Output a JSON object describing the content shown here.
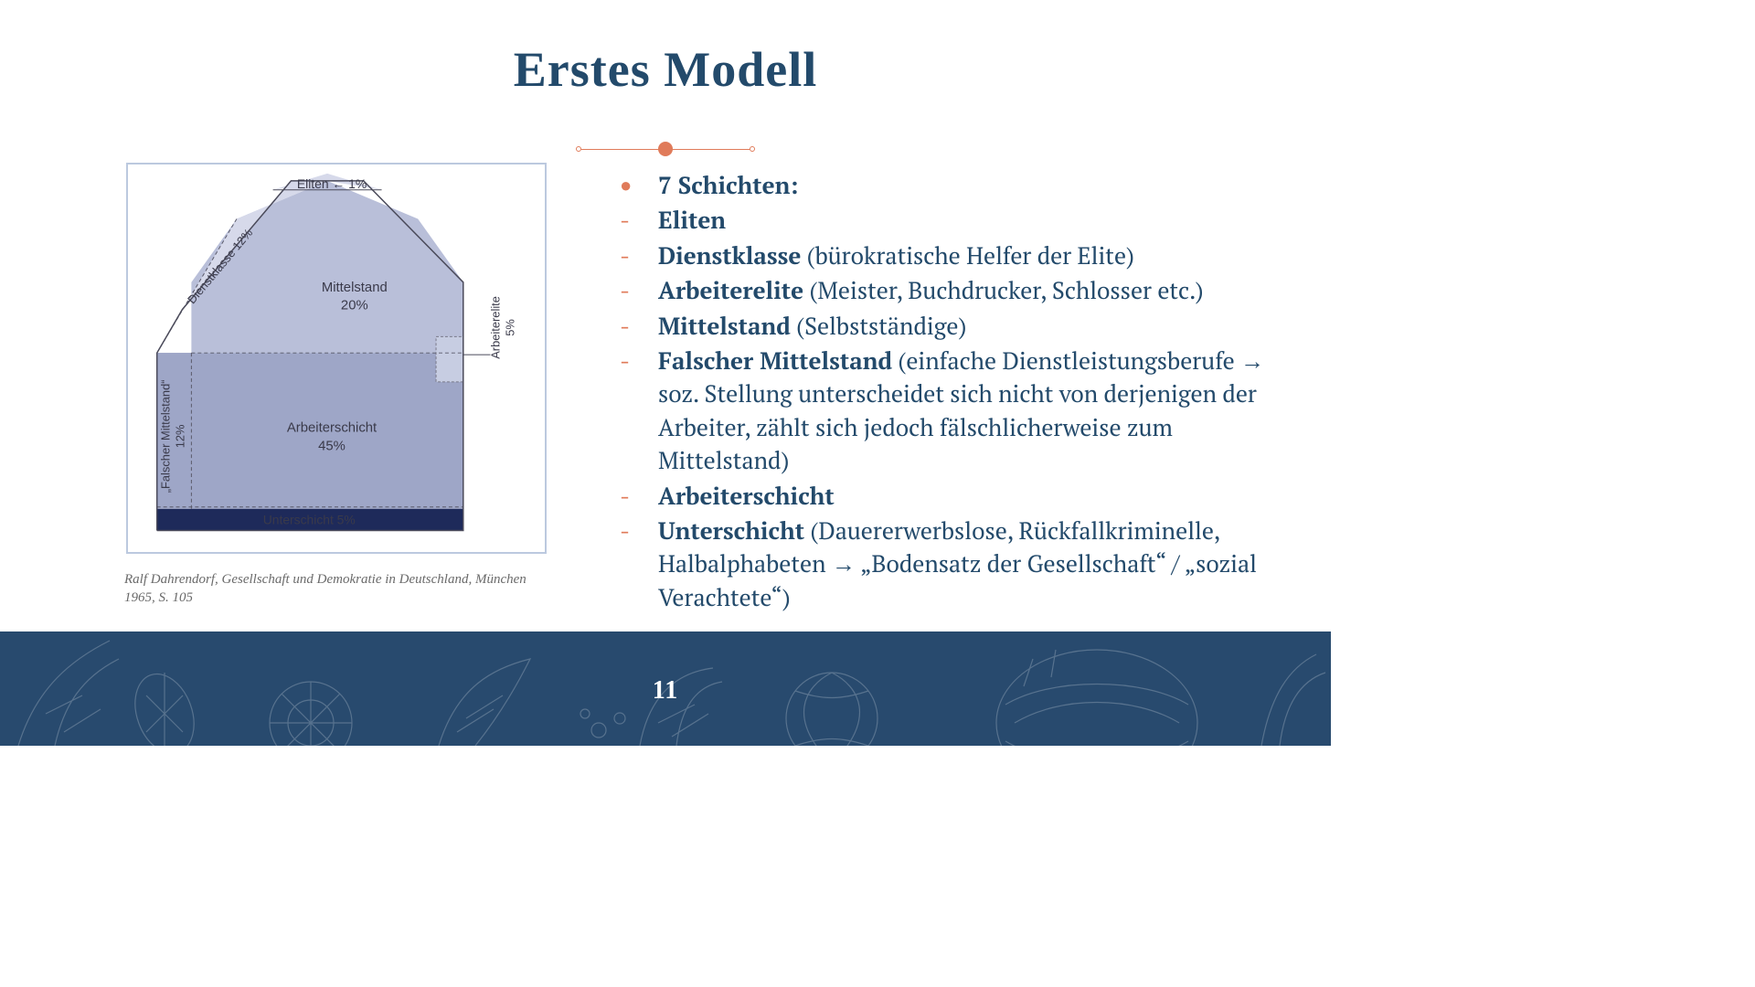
{
  "title": "Erstes Modell",
  "page_number": "11",
  "caption": "Ralf Dahrendorf, Gesellschaft und Demokratie in Deutschland, München 1965, S. 105",
  "bullets": [
    {
      "marker": "dot",
      "bold": "7 Schichten:",
      "rest": ""
    },
    {
      "marker": "dash",
      "bold": "Eliten",
      "rest": ""
    },
    {
      "marker": "dash",
      "bold": "Dienstklasse",
      "rest": " (bürokratische Helfer der Elite)"
    },
    {
      "marker": "dash",
      "bold": "Arbeiterelite",
      "rest": " (Meister, Buchdrucker, Schlosser etc.)"
    },
    {
      "marker": "dash",
      "bold": "Mittelstand",
      "rest": " (Selbstständige)"
    },
    {
      "marker": "dash",
      "bold": "Falscher Mittelstand",
      "rest": " (einfache Dienstleistungsberufe → soz. Stellung unterscheidet sich nicht von derjenigen der Arbeiter, zählt sich jedoch fälschlicherweise zum Mittelstand)"
    },
    {
      "marker": "dash",
      "bold": "Arbeiterschicht",
      "rest": ""
    },
    {
      "marker": "dash",
      "bold": "Unterschicht",
      "rest": " (Dauererwerbslose, Rückfallkriminelle, Halbalphabeten → „Bodensatz der Gesellschaft“ / „sozial Verachtete“)"
    }
  ],
  "colors": {
    "title": "#234a6b",
    "accent": "#e07b5a",
    "footer_bg": "#284a6e",
    "chart_border": "#bcc9df",
    "chart_light": "#d6d9ea",
    "chart_mid": "#b9bfd9",
    "chart_dark": "#9ea6c7",
    "chart_under": "#1e2a5a",
    "chart_side": "#c7cde2"
  },
  "chart": {
    "type": "infographic",
    "title_fontsize": 14,
    "strata": [
      {
        "name": "Eliten",
        "percent": "1%"
      },
      {
        "name": "Dienstklasse",
        "percent": "12%"
      },
      {
        "name": "Mittelstand",
        "percent": "20%"
      },
      {
        "name": "Arbeiterelite",
        "percent": "5%"
      },
      {
        "name": "„Falscher Mittelstand“",
        "percent": "12%"
      },
      {
        "name": "Arbeiterschicht",
        "percent": "45%"
      },
      {
        "name": "Unterschicht",
        "percent": "5%"
      }
    ],
    "labels": {
      "eliten": "Eliten ← 1%",
      "dienst": "Dienstklasse 12%",
      "mittel_name": "Mittelstand",
      "mittel_pct": "20%",
      "arbelite_name": "Arbeiterelite",
      "arbelite_pct": "5%",
      "falsch_name": "„Falscher Mittelstand“",
      "falsch_pct": "12%",
      "arbschicht_name": "Arbeiterschicht",
      "arbschicht_pct": "45%",
      "unter": "Unterschicht 5%"
    }
  }
}
